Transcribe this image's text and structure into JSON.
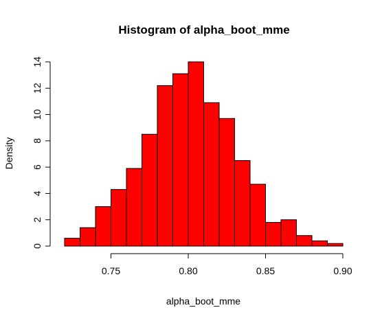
{
  "chart_data": {
    "type": "bar",
    "title": "Histogram of alpha_boot_mme",
    "xlabel": "alpha_boot_mme",
    "ylabel": "Density",
    "bar_color": "#FF0000",
    "border_color": "#000000",
    "bins": [
      {
        "start": 0.72,
        "end": 0.73,
        "value": 0.6
      },
      {
        "start": 0.73,
        "end": 0.74,
        "value": 1.4
      },
      {
        "start": 0.74,
        "end": 0.75,
        "value": 3.0
      },
      {
        "start": 0.75,
        "end": 0.76,
        "value": 4.3
      },
      {
        "start": 0.76,
        "end": 0.77,
        "value": 5.9
      },
      {
        "start": 0.77,
        "end": 0.78,
        "value": 8.5
      },
      {
        "start": 0.78,
        "end": 0.79,
        "value": 12.2
      },
      {
        "start": 0.79,
        "end": 0.8,
        "value": 13.1
      },
      {
        "start": 0.8,
        "end": 0.81,
        "value": 14.0
      },
      {
        "start": 0.81,
        "end": 0.82,
        "value": 10.9
      },
      {
        "start": 0.82,
        "end": 0.83,
        "value": 9.7
      },
      {
        "start": 0.83,
        "end": 0.84,
        "value": 6.5
      },
      {
        "start": 0.84,
        "end": 0.85,
        "value": 4.7
      },
      {
        "start": 0.85,
        "end": 0.86,
        "value": 1.8
      },
      {
        "start": 0.86,
        "end": 0.87,
        "value": 2.0
      },
      {
        "start": 0.87,
        "end": 0.88,
        "value": 0.8
      },
      {
        "start": 0.88,
        "end": 0.89,
        "value": 0.4
      },
      {
        "start": 0.89,
        "end": 0.9,
        "value": 0.2
      }
    ],
    "xlim": [
      0.72,
      0.9
    ],
    "ylim": [
      0,
      14
    ],
    "x_ticks": [
      0.75,
      0.8,
      0.85,
      0.9
    ],
    "x_tick_labels": [
      "0.75",
      "0.80",
      "0.85",
      "0.90"
    ],
    "y_ticks": [
      0,
      2,
      4,
      6,
      8,
      10,
      12,
      14
    ],
    "y_tick_labels": [
      "0",
      "2",
      "4",
      "6",
      "8",
      "10",
      "12",
      "14"
    ],
    "grid": false,
    "legend": "none"
  }
}
